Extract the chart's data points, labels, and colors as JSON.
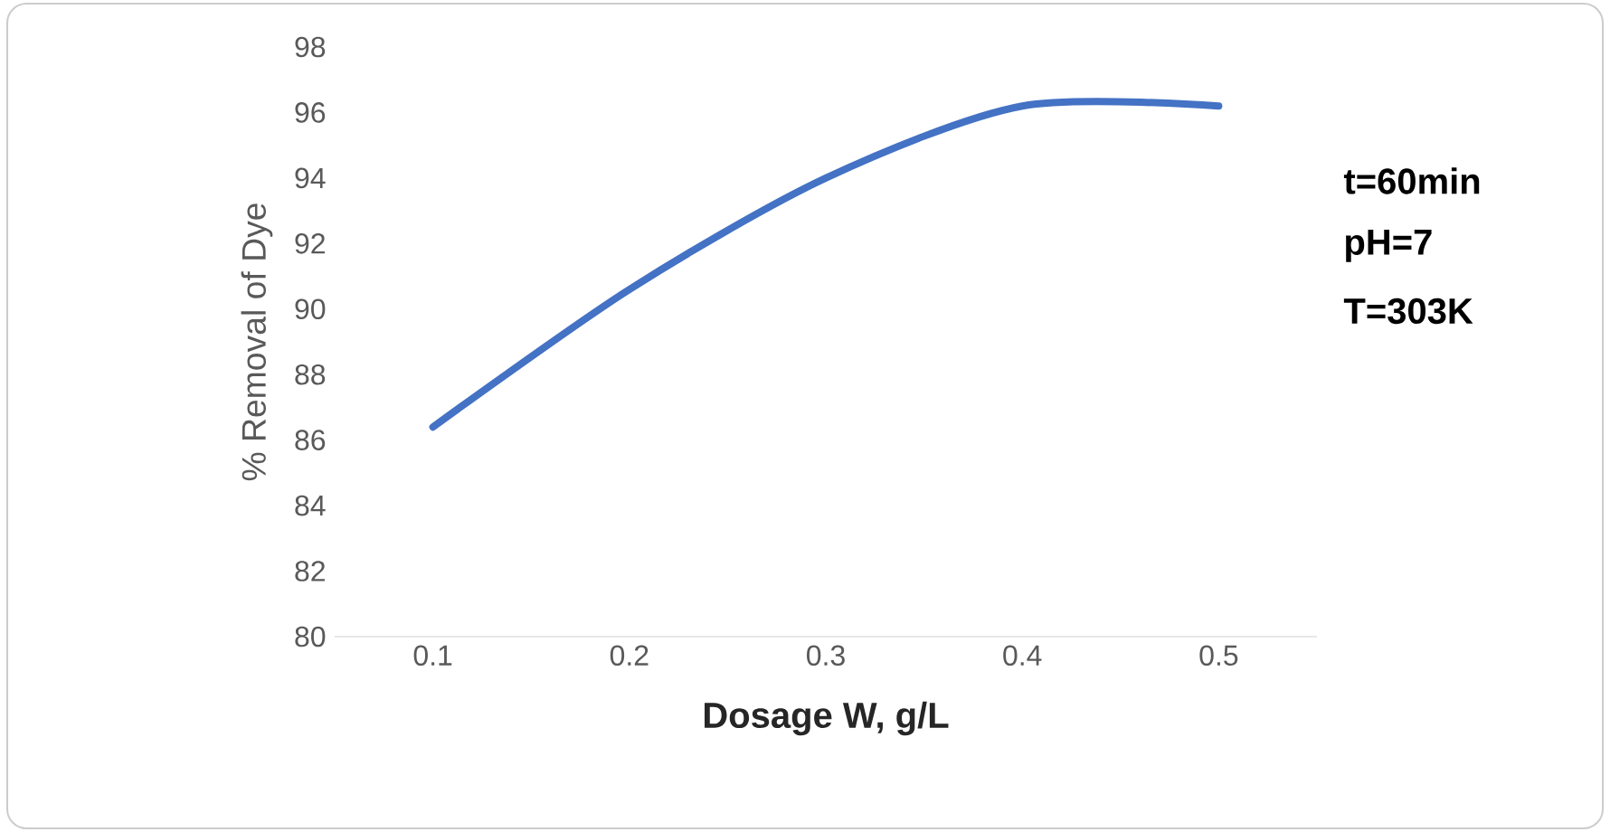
{
  "chart_data": {
    "type": "line",
    "xlabel": "Dosage W, g/L",
    "ylabel": "% Removal of Dye",
    "categories": [
      "0.1",
      "0.2",
      "0.3",
      "0.4",
      "0.5"
    ],
    "series": [
      {
        "color": "#4472c4",
        "values": [
          86.4,
          90.6,
          94.0,
          96.2,
          96.2
        ]
      }
    ],
    "ylim": [
      80,
      98
    ],
    "yticks": [
      80,
      82,
      84,
      86,
      88,
      90,
      92,
      94,
      96,
      98
    ],
    "grid": false,
    "marker": "none",
    "line_style": "solid",
    "annotations": [
      "t=60min",
      "pH=7",
      "T=303K"
    ]
  }
}
